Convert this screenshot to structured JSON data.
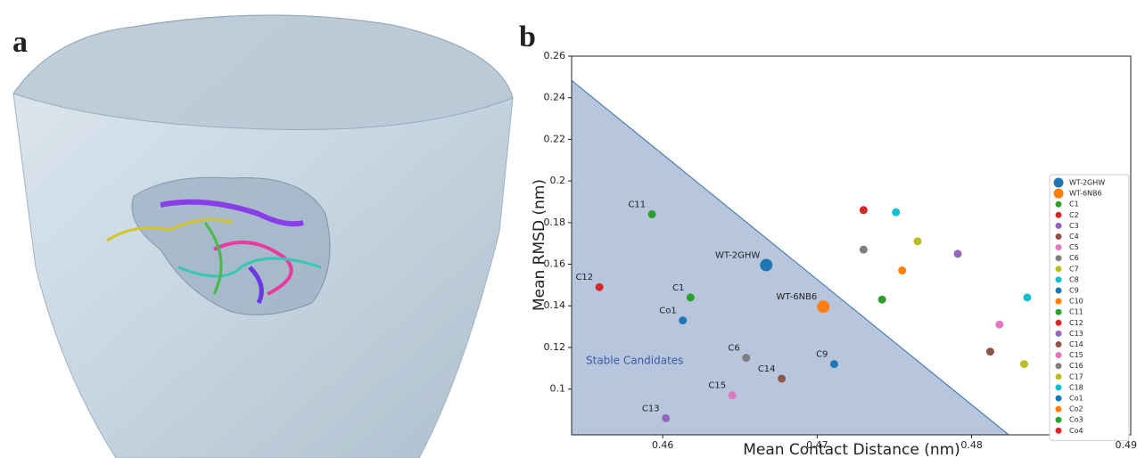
{
  "panels": {
    "a": "a",
    "b": "b"
  },
  "chart_data": {
    "type": "scatter",
    "xlabel": "Mean Contact Distance (nm)",
    "ylabel": "Mean RMSD (nm)",
    "xlim": [
      0.4541,
      0.4903
    ],
    "ylim": [
      0.078,
      0.26
    ],
    "xticks": [
      0.46,
      0.47,
      0.48,
      0.49
    ],
    "yticks": [
      0.1,
      0.12,
      0.14,
      0.16,
      0.18,
      0.2,
      0.22,
      0.24,
      0.26
    ],
    "stable_region": {
      "label": "Stable Candidates",
      "color": "#b7c6dc",
      "x": [
        0.4541,
        0.4824
      ],
      "y": [
        0.2483,
        0.078
      ]
    },
    "series": [
      {
        "name": "WT-2GHW",
        "color": "#1f77b4",
        "x": 0.4667,
        "y": 0.1596,
        "marker": "large",
        "labeled": true
      },
      {
        "name": "WT-6NB6",
        "color": "#ff7f0e",
        "x": 0.4704,
        "y": 0.1396,
        "marker": "large",
        "labeled": true
      },
      {
        "name": "C1",
        "color": "#2ca02c",
        "x": 0.4618,
        "y": 0.144,
        "labeled": true
      },
      {
        "name": "C2",
        "color": "#d62728",
        "x": 0.473,
        "y": 0.186
      },
      {
        "name": "C3",
        "color": "#9467bd",
        "x": 0.4791,
        "y": 0.165
      },
      {
        "name": "C4",
        "color": "#8c564b",
        "x": 0.4812,
        "y": 0.118
      },
      {
        "name": "C5",
        "color": "#e377c2",
        "x": 0.4818,
        "y": 0.131
      },
      {
        "name": "C6",
        "color": "#7f7f7f",
        "x": 0.4654,
        "y": 0.115,
        "labeled": true
      },
      {
        "name": "C7",
        "color": "#bcbd22",
        "x": 0.4834,
        "y": 0.112
      },
      {
        "name": "C8",
        "color": "#17becf",
        "x": 0.4836,
        "y": 0.144
      },
      {
        "name": "C9",
        "color": "#1f77b4",
        "x": 0.4711,
        "y": 0.112,
        "labeled": true
      },
      {
        "name": "C10",
        "color": "#ff7f0e",
        "x": 0.4755,
        "y": 0.157
      },
      {
        "name": "C11",
        "color": "#2ca02c",
        "x": 0.4593,
        "y": 0.184,
        "labeled": true
      },
      {
        "name": "C12",
        "color": "#d62728",
        "x": 0.4559,
        "y": 0.149,
        "labeled": true
      },
      {
        "name": "C13",
        "color": "#9467bd",
        "x": 0.4602,
        "y": 0.086,
        "labeled": true
      },
      {
        "name": "C14",
        "color": "#8c564b",
        "x": 0.4677,
        "y": 0.105,
        "labeled": true
      },
      {
        "name": "C15",
        "color": "#e377c2",
        "x": 0.4645,
        "y": 0.097,
        "labeled": true
      },
      {
        "name": "C16",
        "color": "#7f7f7f",
        "x": 0.473,
        "y": 0.167
      },
      {
        "name": "C17",
        "color": "#bcbd22",
        "x": 0.4765,
        "y": 0.171
      },
      {
        "name": "C18",
        "color": "#17becf",
        "x": 0.4751,
        "y": 0.185
      },
      {
        "name": "Co1",
        "color": "#1f77b4",
        "x": 0.4613,
        "y": 0.133,
        "labeled": true
      },
      {
        "name": "Co2",
        "color": "#ff7f0e",
        "x": null,
        "y": null
      },
      {
        "name": "Co3",
        "color": "#2ca02c",
        "x": 0.4742,
        "y": 0.143
      },
      {
        "name": "Co4",
        "color": "#d62728",
        "x": null,
        "y": null
      }
    ]
  }
}
